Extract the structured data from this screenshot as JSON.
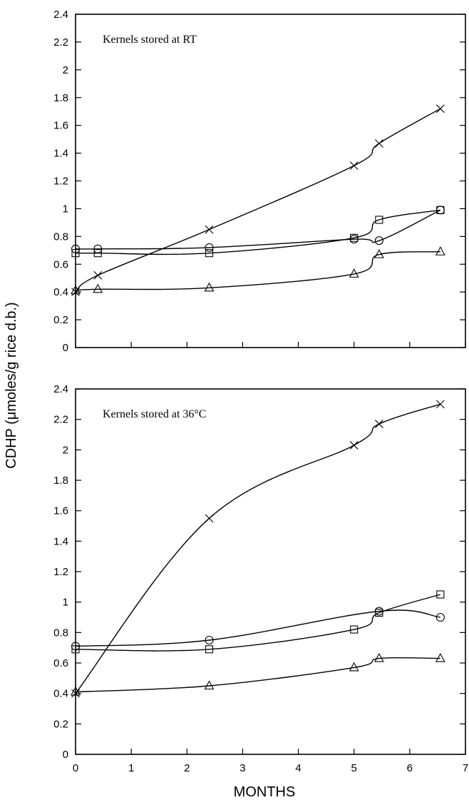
{
  "figure": {
    "ylabel": "CDHP (μmoles/g rice d.b.)",
    "xlabel": "MONTHS"
  },
  "chart_data": [
    {
      "type": "line",
      "title": "Kernels stored at RT",
      "xlabel": "",
      "ylabel": "CDHP (μmoles/g rice d.b.)",
      "xlim": [
        0,
        7
      ],
      "ylim": [
        0,
        2.4
      ],
      "yticks": [
        "0",
        "0.2",
        "0.4",
        "0.6",
        "0.8",
        "1",
        "1.2",
        "1.4",
        "1.6",
        "1.8",
        "2",
        "2.2",
        "2.4"
      ],
      "xticks": [],
      "grid": false,
      "series": [
        {
          "marker": "x",
          "x": [
            0,
            0.4,
            2.4,
            5.0,
            5.45,
            6.55
          ],
          "y": [
            0.4,
            0.52,
            0.85,
            1.31,
            1.47,
            1.72
          ]
        },
        {
          "marker": "circle",
          "x": [
            0,
            0.4,
            2.4,
            5.0,
            5.45,
            6.55
          ],
          "y": [
            0.71,
            0.71,
            0.72,
            0.78,
            0.77,
            0.99
          ]
        },
        {
          "marker": "square",
          "x": [
            0,
            0.4,
            2.4,
            5.0,
            5.45,
            6.55
          ],
          "y": [
            0.68,
            0.68,
            0.68,
            0.79,
            0.92,
            0.99
          ]
        },
        {
          "marker": "triangle",
          "x": [
            0,
            0.4,
            2.4,
            5.0,
            5.45,
            6.55
          ],
          "y": [
            0.41,
            0.42,
            0.43,
            0.53,
            0.67,
            0.69
          ]
        }
      ]
    },
    {
      "type": "line",
      "title": "Kernels stored at 36°C",
      "xlabel": "MONTHS",
      "ylabel": "CDHP (μmoles/g rice d.b.)",
      "xlim": [
        0,
        7
      ],
      "ylim": [
        0,
        2.4
      ],
      "yticks": [
        "0",
        "0.2",
        "0.4",
        "0.6",
        "0.8",
        "1",
        "1.2",
        "1.4",
        "1.6",
        "1.8",
        "2",
        "2.2",
        "2.4"
      ],
      "xticks": [
        "0",
        "1",
        "2",
        "3",
        "4",
        "5",
        "6",
        "7"
      ],
      "grid": false,
      "series": [
        {
          "marker": "x",
          "x": [
            0,
            2.4,
            5.0,
            5.45,
            6.55
          ],
          "y": [
            0.4,
            1.55,
            2.03,
            2.17,
            2.3
          ]
        },
        {
          "marker": "circle",
          "x": [
            0,
            2.4,
            5.45,
            6.55
          ],
          "y": [
            0.71,
            0.75,
            0.94,
            0.9
          ]
        },
        {
          "marker": "square",
          "x": [
            0,
            2.4,
            5.0,
            5.45,
            6.55
          ],
          "y": [
            0.69,
            0.69,
            0.82,
            0.93,
            1.05
          ]
        },
        {
          "marker": "triangle",
          "x": [
            0,
            2.4,
            5.0,
            5.45,
            6.55
          ],
          "y": [
            0.41,
            0.45,
            0.57,
            0.63,
            0.63
          ]
        }
      ]
    }
  ]
}
